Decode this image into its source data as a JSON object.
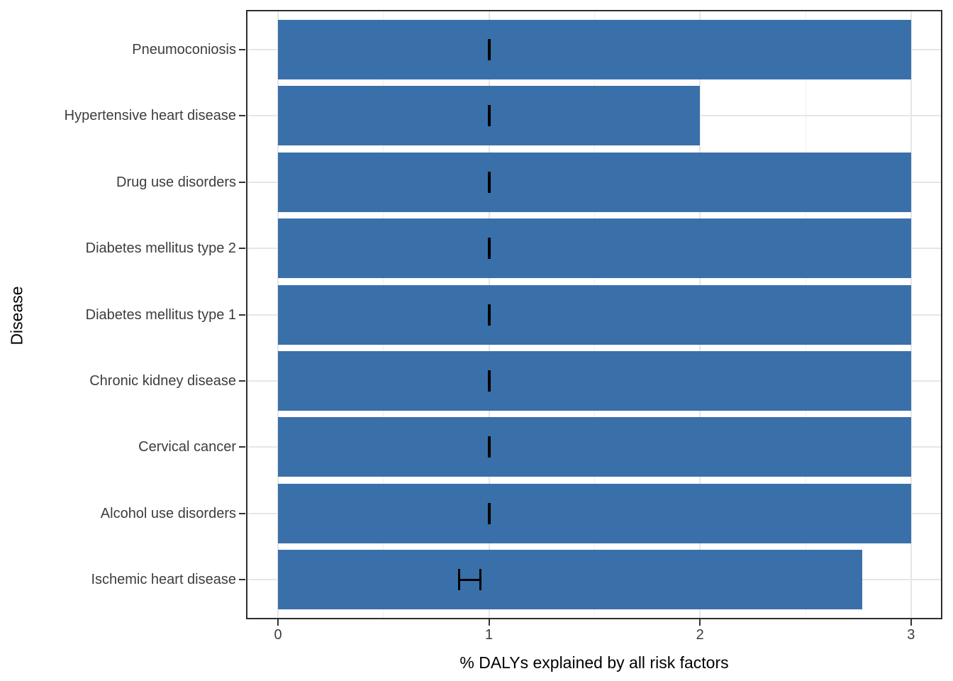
{
  "chart_data": {
    "type": "bar",
    "orientation": "horizontal",
    "title": "",
    "xlabel": "% DALYs explained by all risk factors",
    "ylabel": "Disease",
    "categories_top_to_bottom": [
      "Pneumoconiosis",
      "Hypertensive heart disease",
      "Drug use disorders",
      "Diabetes mellitus type 2",
      "Diabetes mellitus type 1",
      "Chronic kidney disease",
      "Cervical cancer",
      "Alcohol use disorders",
      "Ischemic heart disease"
    ],
    "series": [
      {
        "name": "% DALYs explained by all risk factors",
        "values": [
          3.0,
          2.0,
          3.0,
          3.0,
          3.0,
          3.0,
          3.0,
          3.0,
          2.77
        ]
      }
    ],
    "error_bars": [
      {
        "low": 1.0,
        "high": 1.0
      },
      {
        "low": 1.0,
        "high": 1.0
      },
      {
        "low": 1.0,
        "high": 1.0
      },
      {
        "low": 1.0,
        "high": 1.0
      },
      {
        "low": 1.0,
        "high": 1.0
      },
      {
        "low": 1.0,
        "high": 1.0
      },
      {
        "low": 1.0,
        "high": 1.0
      },
      {
        "low": 1.0,
        "high": 1.0
      },
      {
        "low": 0.86,
        "high": 0.96
      }
    ],
    "xlim": [
      0,
      3
    ],
    "x_major_ticks": [
      0,
      1,
      2,
      3
    ],
    "x_axis_tick_labels": [
      "0",
      "1",
      "2",
      "3"
    ],
    "x_minor_gridlines": [
      0.5,
      1.5,
      2.5
    ],
    "grid": "vertical major+minor, horizontal major at category centers",
    "legend": "none",
    "colors": {
      "bar_fill": "#3a70a9",
      "errorbar": "#000000",
      "grid_major": "#e6e6e6",
      "grid_minor": "#efefef",
      "panel_border": "#2e2e2e",
      "axis_text": "#3d3d3d",
      "axis_title": "#000000"
    }
  }
}
